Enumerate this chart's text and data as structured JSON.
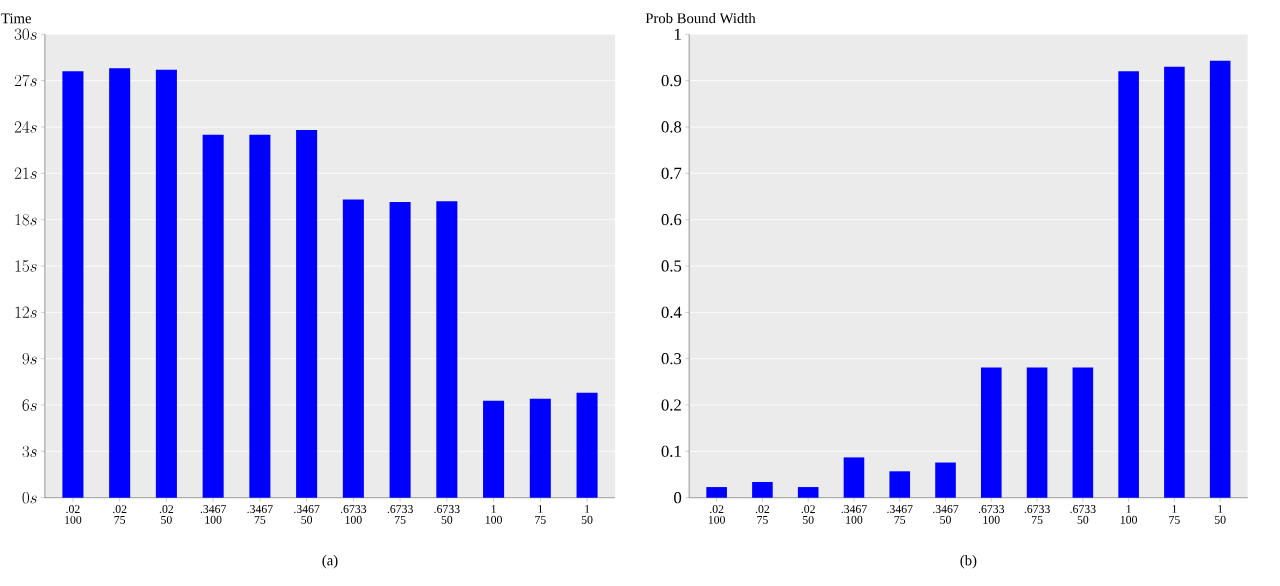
{
  "chart_data": [
    {
      "type": "bar",
      "ylabel": "Time",
      "categories": [
        ".02 100",
        ".02 75",
        ".02 50",
        ".3467 100",
        ".3467 75",
        ".3467 50",
        ".6733 100",
        ".6733 75",
        ".6733 50",
        "1 100",
        "1 75",
        "1 50"
      ],
      "values": [
        27.6,
        27.8,
        27.7,
        23.5,
        23.5,
        23.8,
        19.3,
        19.15,
        19.2,
        6.28,
        6.4,
        6.8
      ],
      "color": "#0000ff",
      "ylim": [
        0,
        30
      ],
      "yticks": [
        {
          "value": 0,
          "label": "0s"
        },
        {
          "value": 3,
          "label": "3s"
        },
        {
          "value": 6,
          "label": "6s"
        },
        {
          "value": 9,
          "label": "9s"
        },
        {
          "value": 12,
          "label": "12s"
        },
        {
          "value": 15,
          "label": "15s"
        },
        {
          "value": 18,
          "label": "18s"
        },
        {
          "value": 21,
          "label": "21s"
        },
        {
          "value": 24,
          "label": "24s"
        },
        {
          "value": 27,
          "label": "27s"
        },
        {
          "value": 30,
          "label": "30s"
        }
      ],
      "grid": "y",
      "annotations": [
        "(a)"
      ]
    },
    {
      "type": "bar",
      "ylabel": "Prob Bound Width",
      "categories": [
        ".02 100",
        ".02 75",
        ".02 50",
        ".3467 100",
        ".3467 75",
        ".3467 50",
        ".6733 100",
        ".6733 75",
        ".6733 50",
        "1 100",
        "1 75",
        "1 50"
      ],
      "values": [
        0.023,
        0.034,
        0.023,
        0.087,
        0.057,
        0.076,
        0.281,
        0.281,
        0.281,
        0.92,
        0.93,
        0.943
      ],
      "color": "#0000ff",
      "ylim": [
        0,
        1
      ],
      "yticks": [
        0,
        0.1,
        0.2,
        0.3,
        0.4,
        0.5,
        0.6,
        0.7,
        0.8,
        0.9,
        1
      ],
      "grid": "y",
      "annotations": [
        "(b)"
      ]
    }
  ]
}
